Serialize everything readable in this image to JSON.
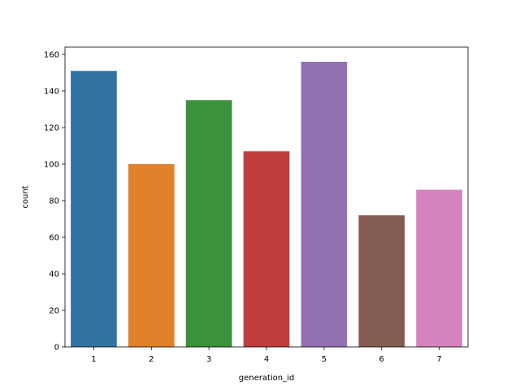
{
  "chart_data": {
    "type": "bar",
    "title": "",
    "xlabel": "generation_id",
    "ylabel": "count",
    "categories": [
      "1",
      "2",
      "3",
      "4",
      "5",
      "6",
      "7"
    ],
    "values": [
      151,
      100,
      135,
      107,
      156,
      72,
      86
    ],
    "ylim": [
      0,
      164
    ],
    "yticks": [
      0,
      20,
      40,
      60,
      80,
      100,
      120,
      140,
      160
    ],
    "grid": false,
    "legend": "none",
    "colors": [
      "#3274a1",
      "#e1812c",
      "#3a923a",
      "#c03d3e",
      "#9372b2",
      "#845b53",
      "#d684bd"
    ]
  }
}
